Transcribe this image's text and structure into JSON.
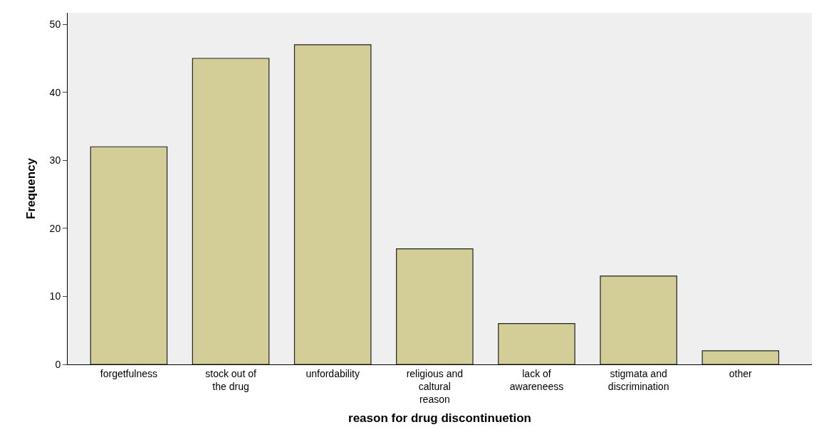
{
  "chart_data": {
    "type": "bar",
    "xlabel": "reason for drug discontinuetion",
    "ylabel": "Frequency",
    "categories": [
      "forgetfulness",
      "stock out of the drug",
      "unfordability",
      "religious and caltural reason",
      "lack of awareneess",
      "stigmata and discrimination",
      "other"
    ],
    "values": [
      32,
      45,
      47,
      17,
      6,
      13,
      2
    ],
    "color": "#d3ce97",
    "ylim": [
      0,
      51.7
    ],
    "yticks": [
      0,
      10,
      20,
      30,
      40,
      50
    ],
    "grid": false
  }
}
